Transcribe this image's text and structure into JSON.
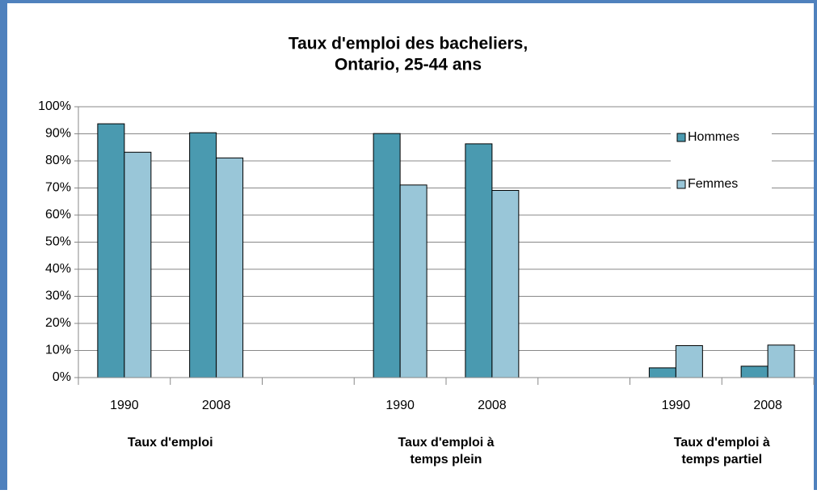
{
  "chart_data": {
    "type": "bar",
    "title": [
      "Taux d'emploi des bacheliers,",
      "Ontario, 25-44 ans"
    ],
    "categories": [
      "1990",
      "2008",
      null,
      "1990",
      "2008",
      null,
      "1990",
      "2008"
    ],
    "group_labels": [
      [
        "Taux d'emploi"
      ],
      [
        "Taux d'emploi à",
        "temps plein"
      ],
      [
        "Taux  d'emploi à",
        "temps partiel"
      ]
    ],
    "series": [
      {
        "name": "Hommes",
        "color": "#4a9ab0",
        "values": [
          93.7,
          90.4,
          null,
          90.1,
          86.3,
          null,
          3.6,
          4.2
        ]
      },
      {
        "name": "Femmes",
        "color": "#99c6d8",
        "values": [
          83.2,
          81.1,
          null,
          71.1,
          69.1,
          null,
          11.8,
          12.0
        ]
      }
    ],
    "ylim": [
      0,
      100
    ],
    "yticks": [
      {
        "value": 0,
        "label": "0%"
      },
      {
        "value": 10,
        "label": "10%"
      },
      {
        "value": 20,
        "label": "20%"
      },
      {
        "value": 30,
        "label": "30%"
      },
      {
        "value": 40,
        "label": "40%"
      },
      {
        "value": 50,
        "label": "50%"
      },
      {
        "value": 60,
        "label": "60%"
      },
      {
        "value": 70,
        "label": "70%"
      },
      {
        "value": 80,
        "label": "80%"
      },
      {
        "value": 90,
        "label": "90%"
      },
      {
        "value": 100,
        "label": "100%"
      }
    ],
    "grid": true,
    "legend": "right"
  }
}
